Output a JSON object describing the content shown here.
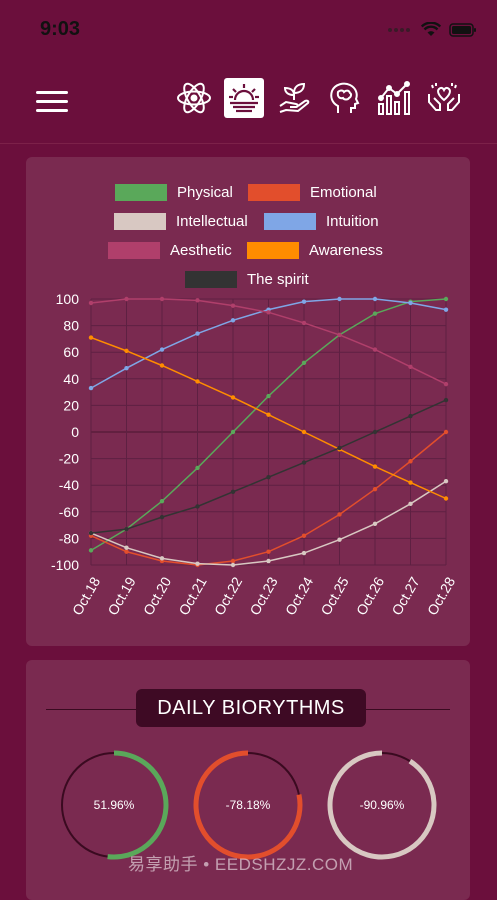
{
  "status": {
    "time": "9:03"
  },
  "nav": {
    "icons": [
      "atom-icon",
      "sunrise-icon",
      "plant-icon",
      "brain-icon",
      "chart-icon",
      "heart-hands-icon"
    ],
    "active_index": 1
  },
  "legend": [
    {
      "label": "Physical",
      "color": "#5aa85a"
    },
    {
      "label": "Emotional",
      "color": "#e24e2c"
    },
    {
      "label": "Intellectual",
      "color": "#d8c8c2"
    },
    {
      "label": "Intuition",
      "color": "#7fa6e6"
    },
    {
      "label": "Aesthetic",
      "color": "#b03f6b"
    },
    {
      "label": "Awareness",
      "color": "#ff8c00"
    },
    {
      "label": "The spirit",
      "color": "#333333"
    }
  ],
  "chart_data": {
    "type": "line",
    "categories": [
      "Oct.18",
      "Oct.19",
      "Oct.20",
      "Oct.21",
      "Oct.22",
      "Oct.23",
      "Oct.24",
      "Oct.25",
      "Oct.26",
      "Oct.27",
      "Oct.28"
    ],
    "ylim": [
      -100,
      100
    ],
    "yticks": [
      100,
      80,
      60,
      40,
      20,
      0,
      -20,
      -40,
      -60,
      -80,
      -100
    ],
    "grid": true,
    "series": [
      {
        "name": "Physical",
        "color": "#5aa85a",
        "values": [
          -89,
          -73,
          -52,
          -27,
          0,
          27,
          52,
          73,
          89,
          98,
          100
        ]
      },
      {
        "name": "Emotional",
        "color": "#e24e2c",
        "values": [
          -78,
          -90,
          -97,
          -100,
          -97,
          -90,
          -78,
          -62,
          -43,
          -22,
          0
        ]
      },
      {
        "name": "Intellectual",
        "color": "#d8c8c2",
        "values": [
          -76,
          -87,
          -95,
          -99,
          -100,
          -97,
          -91,
          -81,
          -69,
          -54,
          -37
        ]
      },
      {
        "name": "Intuition",
        "color": "#7fa6e6",
        "values": [
          33,
          48,
          62,
          74,
          84,
          92,
          98,
          100,
          100,
          97,
          92
        ]
      },
      {
        "name": "Aesthetic",
        "color": "#b03f6b",
        "values": [
          97,
          100,
          100,
          99,
          95,
          90,
          82,
          73,
          62,
          49,
          36
        ]
      },
      {
        "name": "Awareness",
        "color": "#ff8c00",
        "values": [
          71,
          61,
          50,
          38,
          26,
          13,
          0,
          -13,
          -26,
          -38,
          -50
        ]
      },
      {
        "name": "The spirit",
        "color": "#333333",
        "values": [
          -76,
          -73,
          -64,
          -56,
          -45,
          -34,
          -23,
          -12,
          0,
          12,
          24
        ]
      }
    ]
  },
  "daily": {
    "title": "DAILY BIORYTHMS",
    "items": [
      {
        "label": "51.96%",
        "value": 51.96,
        "color": "#5aa85a"
      },
      {
        "label": "-78.18%",
        "value": -78.18,
        "color": "#e24e2c"
      },
      {
        "label": "-90.96%",
        "value": -90.96,
        "color": "#d8c8c2"
      }
    ]
  },
  "watermark": "易享助手 • EEDSHZJZ.COM"
}
